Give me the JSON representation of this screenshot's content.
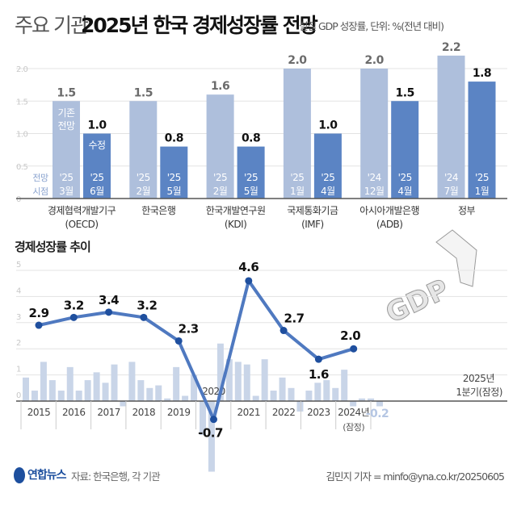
{
  "title": {
    "light": "주요 기관",
    "bold": "2025년 한국 경제성장률 전망",
    "subtitle": "실질 GDP 성장률, 단위: %(전년 대비)"
  },
  "legend": {
    "prev": "기존 전망",
    "rev": "수정",
    "time": "전망 시점"
  },
  "colors": {
    "prev": "#aebfdc",
    "rev": "#5b84c4",
    "line": "#4f79c0",
    "point": "#1f4f9e",
    "qbar": "#c9d5e8"
  },
  "chart_data": [
    {
      "type": "bar",
      "title": "주요 기관 2025년 한국 경제성장률 전망",
      "ylim": [
        0,
        2.2
      ],
      "yticks": [
        "0",
        "0.5",
        "1.0",
        "1.5",
        "2.0"
      ],
      "categories": [
        {
          "name": "경제협력개발기구",
          "sub": "(OECD)",
          "prev": 1.5,
          "rev": 1.0,
          "prev_date": [
            "'25",
            "3월"
          ],
          "rev_date": [
            "'25",
            "6월"
          ]
        },
        {
          "name": "한국은행",
          "sub": "",
          "prev": 1.5,
          "rev": 0.8,
          "prev_date": [
            "'25",
            "2월"
          ],
          "rev_date": [
            "'25",
            "5월"
          ]
        },
        {
          "name": "한국개발연구원",
          "sub": "(KDI)",
          "prev": 1.6,
          "rev": 0.8,
          "prev_date": [
            "'25",
            "2월"
          ],
          "rev_date": [
            "'25",
            "5월"
          ]
        },
        {
          "name": "국제통화기금",
          "sub": "(IMF)",
          "prev": 2.0,
          "rev": 1.0,
          "prev_date": [
            "'25",
            "1월"
          ],
          "rev_date": [
            "'25",
            "4월"
          ]
        },
        {
          "name": "아시아개발은행",
          "sub": "(ADB)",
          "prev": 2.0,
          "rev": 1.5,
          "prev_date": [
            "'24",
            "12월"
          ],
          "rev_date": [
            "'25",
            "4월"
          ]
        },
        {
          "name": "정부",
          "sub": "",
          "prev": 2.2,
          "rev": 1.8,
          "prev_date": [
            "'24",
            "7월"
          ],
          "rev_date": [
            "'25",
            "1월"
          ]
        }
      ]
    },
    {
      "type": "line",
      "title": "경제성장률 추이",
      "ylim": [
        -3,
        5
      ],
      "yticks": [
        "0",
        "1",
        "2",
        "3",
        "4",
        "5"
      ],
      "x": [
        "2015",
        "2016",
        "2017",
        "2018",
        "2019",
        "2020",
        "2021",
        "2022",
        "2023",
        "2024년"
      ],
      "x_sub": {
        "9": "(잠정)"
      },
      "values": [
        2.9,
        3.2,
        3.4,
        3.2,
        2.3,
        -0.7,
        4.6,
        2.7,
        1.6,
        2.0
      ],
      "labels": [
        "2.9",
        "3.2",
        "3.4",
        "3.2",
        "2.3",
        "-0.7",
        "4.6",
        "2.7",
        "1.6",
        "2.0"
      ],
      "quarterly": [
        0.9,
        0.4,
        1.5,
        0.8,
        0.4,
        1.3,
        0.4,
        0.8,
        1.1,
        0.7,
        1.4,
        -0.2,
        1.5,
        0.8,
        0.5,
        0.6,
        0.1,
        1.3,
        0.2,
        1.0,
        -1.3,
        -2.7,
        2.2,
        1.6,
        1.5,
        1.4,
        0.2,
        1.6,
        0.4,
        0.9,
        0.5,
        -0.4,
        0.4,
        0.7,
        0.8,
        0.5,
        1.2,
        -0.2,
        0.1,
        0.1,
        -0.2
      ],
      "q_last_label": "-0.2",
      "q_last_note": [
        "2025년",
        "1분기(잠정)"
      ],
      "extra_2020": "2020"
    }
  ],
  "footer": {
    "logo": "연합뉴스",
    "source": "자료: 한국은행, 각 기관",
    "credit": "김민지 기자 = minfo@yna.co.kr/20250605"
  },
  "graphic": {
    "gdp": "GDP"
  }
}
